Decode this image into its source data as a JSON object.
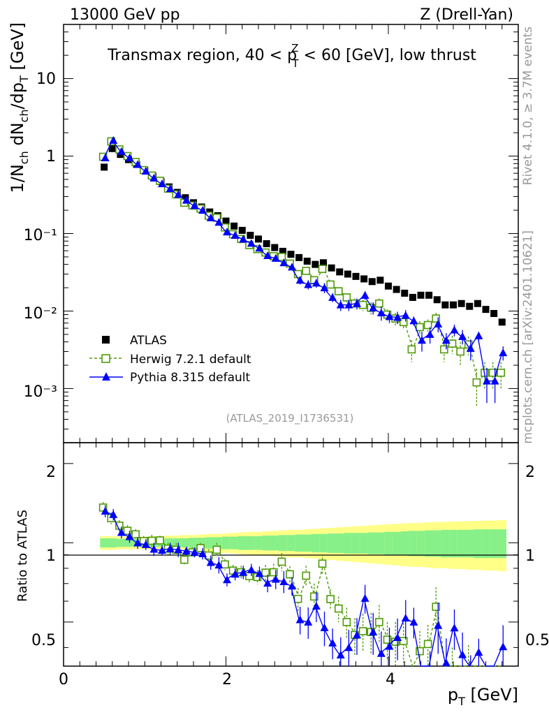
{
  "header": {
    "left": "13000 GeV pp",
    "right": "Z (Drell-Yan)"
  },
  "side": {
    "top": "Rivet 4.1.0, ≥ 3.7M events",
    "bottom": "mcplots.cern.ch [arXiv:2401.10621]"
  },
  "main_panel": {
    "title_a": "Transmax region, 40 < p",
    "title_sup": "Z",
    "title_sub": "T",
    "title_b": " < 60 [GeV], low thrust",
    "ylabel": "1/N_ch dN_ch/dp_T [GeV]",
    "ylabel_parts": {
      "a": "1/N",
      "s1": "ch",
      "b": " dN",
      "s2": "ch",
      "c": "/dp",
      "s3": "T",
      "d": " [GeV]"
    },
    "analysis_tag": "(ATLAS_2019_I1736531)",
    "y_ticks": [
      "10",
      "1",
      "10⁻¹",
      "10⁻²",
      "10⁻³"
    ]
  },
  "ratio_panel": {
    "ylabel": "Ratio to ATLAS",
    "y_ticks": [
      "2",
      "1",
      "0.5"
    ]
  },
  "x_axis": {
    "label_main": "p",
    "label_sub": "T",
    "label_unit": " [GeV]",
    "ticks": [
      "0",
      "2",
      "4"
    ]
  },
  "legend": [
    {
      "name": "ATLAS",
      "color": "#000000",
      "marker": "square-filled"
    },
    {
      "name": "Herwig 7.2.1 default",
      "color": "#4e9a06",
      "marker": "square-open"
    },
    {
      "name": "Pythia 8.315 default",
      "color": "#0000ff",
      "marker": "triangle-filled"
    }
  ],
  "chart_data": {
    "type": "scatter",
    "x_range": [
      0,
      5.6
    ],
    "y_range_main": [
      0.0002,
      50
    ],
    "y_scale_main": "log",
    "y_range_ratio": [
      0.34,
      2.4
    ],
    "y_scale_ratio": "log",
    "x": [
      0.5,
      0.6,
      0.7,
      0.8,
      0.9,
      1.0,
      1.1,
      1.2,
      1.3,
      1.4,
      1.5,
      1.6,
      1.7,
      1.8,
      1.9,
      2.0,
      2.1,
      2.2,
      2.3,
      2.4,
      2.5,
      2.6,
      2.7,
      2.8,
      2.9,
      3.0,
      3.1,
      3.2,
      3.3,
      3.4,
      3.5,
      3.6,
      3.7,
      3.8,
      3.9,
      4.0,
      4.1,
      4.2,
      4.3,
      4.4,
      4.5,
      4.6,
      4.7,
      4.8,
      4.9,
      5.0,
      5.1,
      5.2,
      5.3,
      5.4
    ],
    "series": [
      {
        "name": "ATLAS",
        "color": "#000000",
        "values": [
          0.72,
          1.25,
          1.05,
          0.9,
          0.78,
          0.65,
          0.55,
          0.47,
          0.4,
          0.34,
          0.29,
          0.25,
          0.22,
          0.19,
          0.17,
          0.145,
          0.125,
          0.11,
          0.095,
          0.085,
          0.074,
          0.066,
          0.059,
          0.054,
          0.049,
          0.044,
          0.04,
          0.042,
          0.036,
          0.032,
          0.03,
          0.028,
          0.026,
          0.024,
          0.025,
          0.021,
          0.019,
          0.017,
          0.015,
          0.016,
          0.016,
          0.014,
          0.012,
          0.012,
          0.0125,
          0.0115,
          0.0125,
          0.0105,
          0.0093,
          0.0072
        ]
      },
      {
        "name": "Herwig 7.2.1 default",
        "color": "#4e9a06",
        "values": [
          0.98,
          1.55,
          1.22,
          1.0,
          0.84,
          0.66,
          0.56,
          0.48,
          0.38,
          0.32,
          0.25,
          0.23,
          0.21,
          0.17,
          0.16,
          0.12,
          0.098,
          0.085,
          0.071,
          0.063,
          0.057,
          0.051,
          0.05,
          0.041,
          0.03,
          0.033,
          0.025,
          0.035,
          0.022,
          0.018,
          0.015,
          0.0125,
          0.012,
          0.011,
          0.0125,
          0.009,
          0.008,
          0.0072,
          0.0032,
          0.0062,
          0.0066,
          0.008,
          0.0032,
          0.0038,
          0.003,
          0.0037,
          0.0012,
          0.0016,
          0.0016,
          0.0016
        ],
        "err": [
          0.05,
          0.08,
          0.06,
          0.05,
          0.04,
          0.03,
          0.03,
          0.02,
          0.02,
          0.02,
          0.01,
          0.01,
          0.01,
          0.01,
          0.01,
          0.006,
          0.005,
          0.005,
          0.004,
          0.004,
          0.004,
          0.004,
          0.004,
          0.003,
          0.003,
          0.003,
          0.003,
          0.003,
          0.002,
          0.002,
          0.002,
          0.002,
          0.002,
          0.002,
          0.002,
          0.0015,
          0.0015,
          0.0015,
          0.001,
          0.0012,
          0.0012,
          0.0015,
          0.001,
          0.001,
          0.001,
          0.001,
          0.0006,
          0.0006,
          0.0006,
          0.0006
        ]
      },
      {
        "name": "Pythia 8.315 default",
        "color": "#0000ff",
        "values": [
          0.95,
          1.6,
          1.15,
          0.95,
          0.78,
          0.64,
          0.52,
          0.44,
          0.38,
          0.32,
          0.27,
          0.23,
          0.2,
          0.16,
          0.14,
          0.105,
          0.095,
          0.085,
          0.075,
          0.065,
          0.052,
          0.048,
          0.042,
          0.037,
          0.025,
          0.022,
          0.023,
          0.02,
          0.015,
          0.012,
          0.012,
          0.0125,
          0.016,
          0.011,
          0.0095,
          0.0085,
          0.0083,
          0.0088,
          0.0075,
          0.0042,
          0.005,
          0.0068,
          0.0042,
          0.0057,
          0.0047,
          0.0033,
          0.0048,
          0.00125,
          0.00125,
          0.0029
        ],
        "err": [
          0.05,
          0.08,
          0.06,
          0.05,
          0.04,
          0.03,
          0.03,
          0.02,
          0.02,
          0.02,
          0.01,
          0.01,
          0.01,
          0.01,
          0.01,
          0.006,
          0.005,
          0.005,
          0.004,
          0.004,
          0.004,
          0.004,
          0.004,
          0.003,
          0.003,
          0.003,
          0.003,
          0.003,
          0.002,
          0.002,
          0.002,
          0.002,
          0.002,
          0.002,
          0.002,
          0.0015,
          0.0015,
          0.0015,
          0.001,
          0.0012,
          0.0012,
          0.0015,
          0.001,
          0.001,
          0.001,
          0.001,
          0.0006,
          0.0006,
          0.0006,
          0.0006
        ]
      }
    ],
    "ratio_band_inner": [
      0.04,
      0.04,
      0.035,
      0.035,
      0.035,
      0.035,
      0.035,
      0.035,
      0.04,
      0.04,
      0.04,
      0.045,
      0.045,
      0.05,
      0.05,
      0.055,
      0.055,
      0.06,
      0.06,
      0.06,
      0.065,
      0.065,
      0.07,
      0.07,
      0.075,
      0.075,
      0.08,
      0.08,
      0.085,
      0.085,
      0.09,
      0.09,
      0.09,
      0.095,
      0.095,
      0.1,
      0.1,
      0.105,
      0.11,
      0.11,
      0.115,
      0.115,
      0.12,
      0.12,
      0.12,
      0.12,
      0.125,
      0.125,
      0.125,
      0.125
    ],
    "ratio_band_outer": [
      0.06,
      0.06,
      0.055,
      0.055,
      0.055,
      0.055,
      0.06,
      0.06,
      0.065,
      0.065,
      0.07,
      0.07,
      0.075,
      0.08,
      0.08,
      0.085,
      0.09,
      0.095,
      0.1,
      0.1,
      0.105,
      0.11,
      0.115,
      0.12,
      0.12,
      0.125,
      0.13,
      0.135,
      0.14,
      0.145,
      0.15,
      0.155,
      0.16,
      0.165,
      0.17,
      0.175,
      0.18,
      0.185,
      0.19,
      0.19,
      0.195,
      0.2,
      0.2,
      0.205,
      0.205,
      0.21,
      0.21,
      0.215,
      0.215,
      0.22
    ]
  }
}
